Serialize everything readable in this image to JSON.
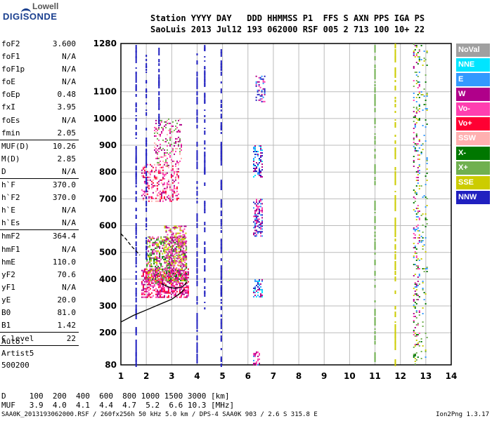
{
  "logo": {
    "top": "Lowell",
    "bottom": "DIGISONDE"
  },
  "header": {
    "line1": "Station YYYY DAY   DDD HHMMSS P1  FFS S AXN PPS IGA PS",
    "line2": "SaoLuis 2013 Jul12 193 062000 RSF 005 2 713 100 10+ 22"
  },
  "params": [
    {
      "name": "foF2",
      "value": "3.600"
    },
    {
      "name": "foF1",
      "value": "N/A"
    },
    {
      "name": "foF1p",
      "value": "N/A"
    },
    {
      "name": "foE",
      "value": "N/A"
    },
    {
      "name": "foEp",
      "value": "0.48"
    },
    {
      "name": "fxI",
      "value": "3.95"
    },
    {
      "name": "foEs",
      "value": "N/A"
    },
    {
      "name": "fmin",
      "value": "2.05"
    },
    {
      "sep": true
    },
    {
      "name": "MUF(D)",
      "value": "10.26"
    },
    {
      "name": "M(D)",
      "value": "2.85"
    },
    {
      "name": "D",
      "value": "N/A"
    },
    {
      "sep": true
    },
    {
      "name": "h`F",
      "value": "370.0"
    },
    {
      "name": "h`F2",
      "value": "370.0"
    },
    {
      "name": "h`E",
      "value": "N/A"
    },
    {
      "name": "h`Es",
      "value": "N/A"
    },
    {
      "sep": true
    },
    {
      "name": "hmF2",
      "value": "364.4"
    },
    {
      "name": "hmF1",
      "value": "N/A"
    },
    {
      "name": "hmE",
      "value": "110.0"
    },
    {
      "name": "yF2",
      "value": "70.6"
    },
    {
      "name": "yF1",
      "value": "N/A"
    },
    {
      "name": "yE",
      "value": "20.0"
    },
    {
      "name": "B0",
      "value": "81.0"
    },
    {
      "name": "B1",
      "value": "1.42"
    },
    {
      "sep": true
    },
    {
      "name": "C-level",
      "value": "22"
    },
    {
      "sep": true
    }
  ],
  "auto": {
    "line1": "Auto:",
    "line2": "Artist5",
    "line3": "500200"
  },
  "legend": [
    {
      "label": "NoVal",
      "color": "#a0a0a0"
    },
    {
      "label": "NNE",
      "color": "#00e5ff"
    },
    {
      "label": "E",
      "color": "#3399ff"
    },
    {
      "label": "W",
      "color": "#b0008a"
    },
    {
      "label": "Vo-",
      "color": "#ff3fb0"
    },
    {
      "label": "Vo+",
      "color": "#ff0033"
    },
    {
      "label": "SSW",
      "color": "#ffb0b0"
    },
    {
      "label": "X-",
      "color": "#007700"
    },
    {
      "label": "X+",
      "color": "#70b050"
    },
    {
      "label": "SSE",
      "color": "#cccc00"
    },
    {
      "label": "NNW",
      "color": "#2020c0"
    }
  ],
  "muf_table": {
    "d_row": "D     100  200  400  600  800 1000 1500 3000 [km]",
    "muf_row": "MUF   3.9  4.0  4.1  4.4  4.7  5.2  6.6 10.3 [MHz]"
  },
  "footer": {
    "left": "SAA0K_2013193062000.RSF / 260fx256h 50 kHz 5.0 km / DPS-4 SAA0K 903 / 2.6 S 315.8 E",
    "right": "Ion2Png 1.3.17"
  },
  "chart_data": {
    "type": "scatter",
    "x_ticks": [
      1,
      2,
      3,
      4,
      5,
      6,
      7,
      8,
      9,
      10,
      11,
      12,
      13,
      14
    ],
    "y_ticks": [
      80,
      200,
      300,
      400,
      500,
      600,
      700,
      800,
      900,
      1000,
      1100,
      1280
    ],
    "xlim": [
      1,
      14
    ],
    "ylim": [
      80,
      1280
    ],
    "grid": true,
    "traces": [
      {
        "name": "",
        "color": "#000000",
        "points": [
          [
            1.0,
            240
          ],
          [
            1.5,
            265
          ],
          [
            2.0,
            285
          ],
          [
            2.5,
            305
          ],
          [
            3.0,
            325
          ],
          [
            3.3,
            345
          ],
          [
            3.5,
            362
          ]
        ]
      },
      {
        "name": "",
        "color": "#000000",
        "points": [
          [
            2.6,
            383
          ],
          [
            2.9,
            370
          ],
          [
            3.1,
            366
          ],
          [
            3.4,
            370
          ],
          [
            3.6,
            388
          ]
        ]
      },
      {
        "name": "",
        "color": "#000000",
        "dashed": true,
        "points": [
          [
            1.0,
            570
          ],
          [
            1.2,
            550
          ],
          [
            1.4,
            525
          ],
          [
            1.6,
            505
          ],
          [
            1.75,
            490
          ]
        ]
      }
    ],
    "echo_regions": [
      {
        "x": [
          1.8,
          3.7
        ],
        "y": [
          330,
          440
        ],
        "colors": [
          "#ff3fb0",
          "#b0008a",
          "#ff0033"
        ],
        "density": 0.6
      },
      {
        "x": [
          2.0,
          3.6
        ],
        "y": [
          380,
          560
        ],
        "colors": [
          "#cccc00",
          "#007700",
          "#70b050",
          "#b0008a",
          "#ff3fb0"
        ],
        "density": 0.5
      },
      {
        "x": [
          2.7,
          3.6
        ],
        "y": [
          450,
          600
        ],
        "colors": [
          "#ff3fb0",
          "#b0008a",
          "#cccc00"
        ],
        "density": 0.4
      },
      {
        "x": [
          1.8,
          3.3
        ],
        "y": [
          690,
          830
        ],
        "colors": [
          "#ff3fb0",
          "#b0008a",
          "#ffb0b0",
          "#ff0033"
        ],
        "density": 0.3
      },
      {
        "x": [
          2.3,
          3.4
        ],
        "y": [
          820,
          1000
        ],
        "colors": [
          "#ffb0b0",
          "#ff3fb0",
          "#b0008a",
          "#70b050"
        ],
        "density": 0.25
      },
      {
        "x": [
          6.2,
          6.6
        ],
        "y": [
          330,
          400
        ],
        "colors": [
          "#3399ff",
          "#2020c0",
          "#b0008a",
          "#00e5ff"
        ],
        "density": 0.5
      },
      {
        "x": [
          6.2,
          6.6
        ],
        "y": [
          560,
          700
        ],
        "colors": [
          "#3399ff",
          "#2020c0",
          "#b0008a",
          "#ff3fb0"
        ],
        "density": 0.45
      },
      {
        "x": [
          6.2,
          6.6
        ],
        "y": [
          780,
          900
        ],
        "colors": [
          "#3399ff",
          "#2020c0",
          "#00e5ff",
          "#b0008a"
        ],
        "density": 0.4
      },
      {
        "x": [
          6.3,
          6.7
        ],
        "y": [
          1060,
          1160
        ],
        "colors": [
          "#3399ff",
          "#2020c0",
          "#b0008a",
          "#ff3fb0"
        ],
        "density": 0.4
      },
      {
        "x": [
          6.2,
          6.5
        ],
        "y": [
          80,
          130
        ],
        "colors": [
          "#ff3fb0",
          "#3399ff",
          "#b0008a"
        ],
        "density": 0.4
      },
      {
        "x": [
          12.5,
          12.8
        ],
        "y": [
          80,
          1280
        ],
        "colors": [
          "#007700",
          "#70b050",
          "#cccc00",
          "#ff3fb0",
          "#3399ff",
          "#b0008a"
        ],
        "density": 0.22
      },
      {
        "x": [
          12.8,
          13.1
        ],
        "y": [
          80,
          1280
        ],
        "colors": [
          "#007700",
          "#70b050",
          "#cccc00",
          "#3399ff"
        ],
        "density": 0.08
      }
    ],
    "vertical_streaks": [
      {
        "x": 1.6,
        "y": [
          80,
          1280
        ],
        "color": "#2020c0"
      },
      {
        "x": 2.0,
        "y": [
          480,
          1280
        ],
        "color": "#2020c0"
      },
      {
        "x": 2.5,
        "y": [
          950,
          1280
        ],
        "color": "#2020c0"
      },
      {
        "x": 4.0,
        "y": [
          80,
          1280
        ],
        "color": "#2020c0"
      },
      {
        "x": 4.3,
        "y": [
          280,
          1280
        ],
        "color": "#2020c0"
      },
      {
        "x": 4.95,
        "y": [
          80,
          1280
        ],
        "color": "#2020c0"
      },
      {
        "x": 11.0,
        "y": [
          80,
          1280
        ],
        "color": "#70b050"
      },
      {
        "x": 11.8,
        "y": [
          80,
          1280
        ],
        "color": "#cccc00"
      }
    ]
  }
}
